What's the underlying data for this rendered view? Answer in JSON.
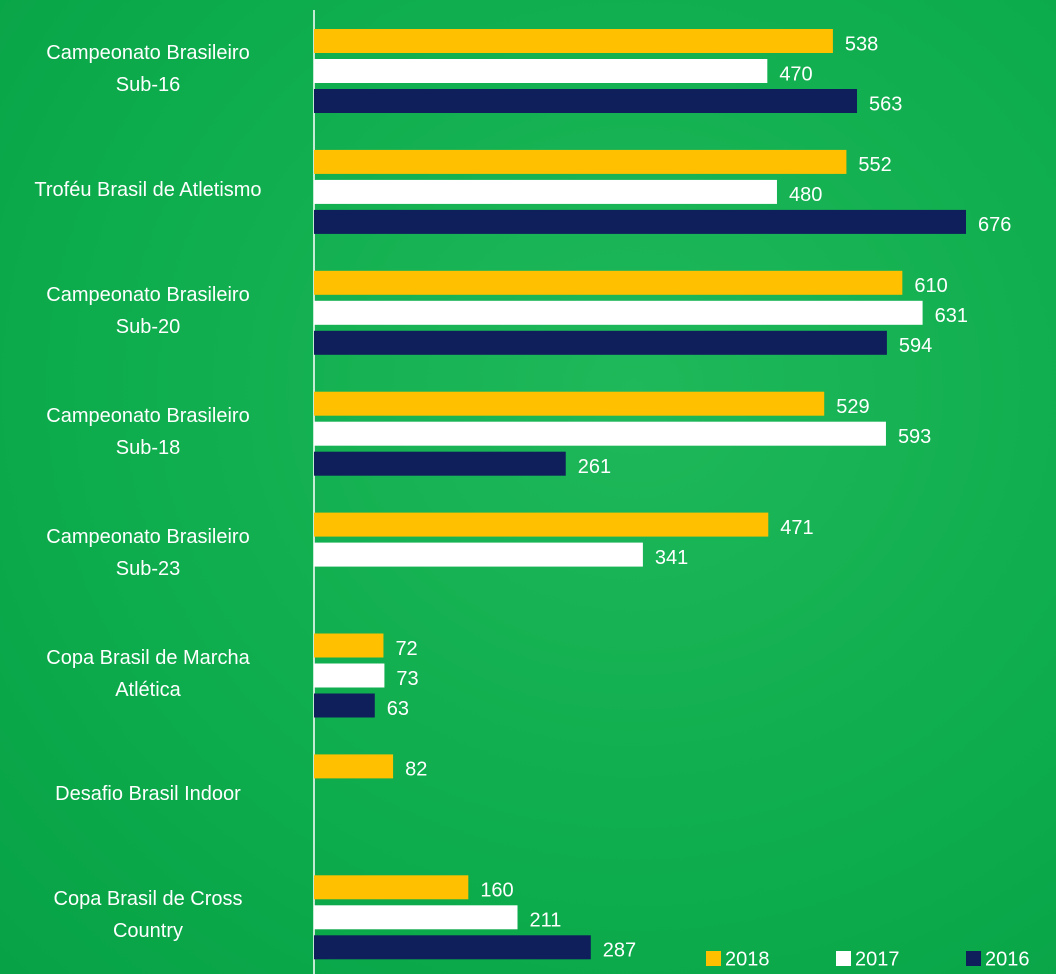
{
  "chart_data": {
    "type": "bar",
    "orientation": "horizontal",
    "categories": [
      "Campeonato Brasileiro Sub-16",
      "Troféu Brasil de Atletismo",
      "Campeonato Brasileiro Sub-20",
      "Campeonato Brasileiro Sub-18",
      "Campeonato Brasileiro Sub-23",
      "Copa Brasil de Marcha Atlética",
      "Desafio Brasil Indoor",
      "Copa Brasil de Cross Country"
    ],
    "series": [
      {
        "name": "2018",
        "color": "#ffc000",
        "values": [
          538,
          552,
          610,
          529,
          471,
          72,
          82,
          160
        ]
      },
      {
        "name": "2017",
        "color": "#ffffff",
        "values": [
          470,
          480,
          631,
          593,
          341,
          73,
          null,
          211
        ]
      },
      {
        "name": "2016",
        "color": "#0f1f5c",
        "values": [
          563,
          676,
          594,
          261,
          null,
          63,
          null,
          287
        ]
      }
    ]
  }
}
